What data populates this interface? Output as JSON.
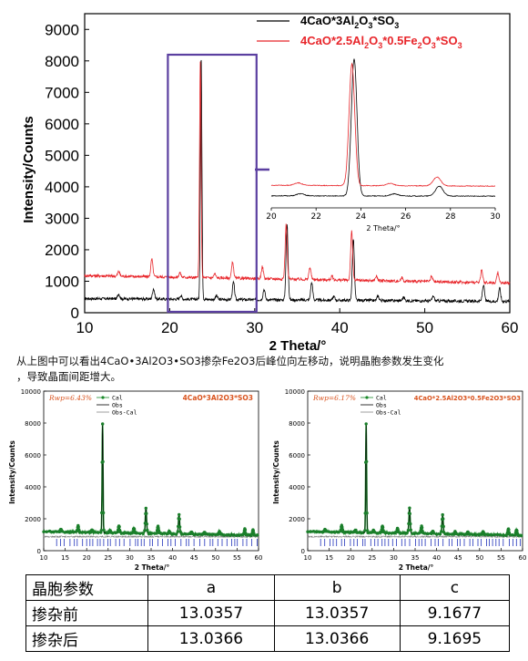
{
  "chart_data": [
    {
      "type": "line",
      "xlabel": "2 Theta/°",
      "ylabel": "Intensity/Counts",
      "xlim": [
        10,
        60
      ],
      "ylim": [
        0,
        9500
      ],
      "x_ticks": [
        10,
        20,
        30,
        40,
        50,
        60
      ],
      "y_ticks": [
        0,
        1000,
        2000,
        3000,
        4000,
        5000,
        6000,
        7000,
        8000,
        9000
      ],
      "legend_placement": "top-right",
      "series": [
        {
          "name": "4CaO*3Al2O3*SO3",
          "color": "#000000",
          "baseline": 450,
          "peaks": [
            [
              14.0,
              160
            ],
            [
              18.1,
              330
            ],
            [
              21.3,
              120
            ],
            [
              23.7,
              7750
            ],
            [
              25.5,
              120
            ],
            [
              27.5,
              550
            ],
            [
              31.1,
              330
            ],
            [
              33.8,
              2400
            ],
            [
              36.7,
              560
            ],
            [
              39.3,
              120
            ],
            [
              41.6,
              1950
            ],
            [
              44.5,
              140
            ],
            [
              47.5,
              110
            ],
            [
              51.0,
              150
            ],
            [
              56.9,
              520
            ],
            [
              58.8,
              420
            ]
          ]
        },
        {
          "name": "4CaO*2.5Al2O3*0.5Fe2O3*SO3",
          "color": "#e8262b",
          "baseline": 1180,
          "peaks": [
            [
              14.0,
              150
            ],
            [
              17.9,
              560
            ],
            [
              21.2,
              140
            ],
            [
              23.6,
              6900
            ],
            [
              25.3,
              130
            ],
            [
              27.4,
              500
            ],
            [
              30.9,
              380
            ],
            [
              33.7,
              1750
            ],
            [
              36.5,
              380
            ],
            [
              39.1,
              110
            ],
            [
              41.4,
              1550
            ],
            [
              44.3,
              140
            ],
            [
              47.3,
              110
            ],
            [
              50.8,
              170
            ],
            [
              56.7,
              400
            ],
            [
              58.6,
              330
            ]
          ]
        }
      ],
      "zoom_box": {
        "x_range": [
          20,
          30
        ],
        "color": "#5b3fa0"
      },
      "inset": {
        "xlabel": "2 Theta/°",
        "xlim": [
          20,
          30
        ],
        "x_ticks": [
          20,
          22,
          24,
          26,
          28,
          30
        ]
      }
    },
    {
      "type": "line",
      "title": "4CaO*3Al2O3*SO3",
      "annotation": "Rwp=6.43%",
      "xlabel": "2 Theta/°",
      "ylabel": "Intensity/Counts",
      "xlim": [
        10,
        60
      ],
      "ylim": [
        0,
        10000
      ],
      "x_ticks": [
        10,
        15,
        20,
        25,
        30,
        35,
        40,
        45,
        50,
        55,
        60
      ],
      "y_ticks": [
        0,
        2000,
        4000,
        6000,
        8000,
        10000
      ],
      "legend": [
        "Cal",
        "Obs",
        "Obs-Cal"
      ],
      "baseline": 1200,
      "peaks": [
        [
          14.0,
          150
        ],
        [
          18.0,
          400
        ],
        [
          21.2,
          150
        ],
        [
          23.7,
          6800
        ],
        [
          25.4,
          150
        ],
        [
          27.5,
          450
        ],
        [
          31.0,
          300
        ],
        [
          33.8,
          1600
        ],
        [
          36.6,
          450
        ],
        [
          39.2,
          150
        ],
        [
          41.5,
          1200
        ],
        [
          44.4,
          150
        ],
        [
          47.4,
          150
        ],
        [
          50.9,
          200
        ],
        [
          56.8,
          400
        ],
        [
          58.7,
          350
        ]
      ]
    },
    {
      "type": "line",
      "title": "4CaO*2.5Al2O3*0.5Fe2O3*SO3",
      "annotation": "Rwp=6.17%",
      "xlabel": "2 Theta/°",
      "ylabel": "Intensity/Counts",
      "xlim": [
        10,
        60
      ],
      "ylim": [
        0,
        10000
      ],
      "x_ticks": [
        10,
        15,
        20,
        25,
        30,
        35,
        40,
        45,
        50,
        55,
        60
      ],
      "y_ticks": [
        0,
        2000,
        4000,
        6000,
        8000,
        10000
      ],
      "legend": [
        "Cal",
        "Obs",
        "Obs-Cal"
      ],
      "baseline": 1200,
      "peaks": [
        [
          14.0,
          150
        ],
        [
          17.9,
          400
        ],
        [
          21.1,
          150
        ],
        [
          23.6,
          6800
        ],
        [
          25.3,
          150
        ],
        [
          27.4,
          450
        ],
        [
          30.9,
          300
        ],
        [
          33.7,
          1600
        ],
        [
          36.5,
          450
        ],
        [
          39.1,
          150
        ],
        [
          41.4,
          1200
        ],
        [
          44.3,
          150
        ],
        [
          47.3,
          150
        ],
        [
          50.8,
          200
        ],
        [
          56.7,
          400
        ],
        [
          58.6,
          350
        ]
      ]
    }
  ],
  "caption": {
    "line1": "从上图中可以看出4CaO•3Al2O3•SO3掺杂Fe2O3后峰位向左移动，说明晶胞参数发生变化",
    "line2": "，导致晶面间距增大。"
  },
  "table": {
    "header": [
      "晶胞参数",
      "a",
      "b",
      "c"
    ],
    "rows": [
      [
        "掺杂前",
        "13.0357",
        "13.0357",
        "9.1677"
      ],
      [
        "掺杂后",
        "13.0366",
        "13.0366",
        "9.1695"
      ]
    ]
  }
}
